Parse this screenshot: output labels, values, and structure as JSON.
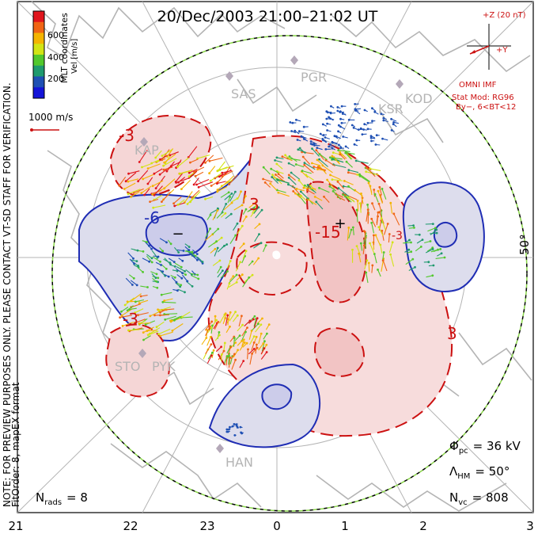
{
  "title": "20/Dec/2003 21:00–21:02 UT",
  "colorbar": {
    "title": "Vel [m/s]",
    "ticks": [
      "600",
      "400",
      "200"
    ],
    "colors": [
      "#e0141c",
      "#f06414",
      "#f4b400",
      "#d2e414",
      "#52c82c",
      "#1f9a6e",
      "#1f50b4",
      "#1414d8"
    ]
  },
  "coordinates_label": "MLT coordinates",
  "scale_vector": "1000 m/s",
  "imf": {
    "z_label": "+Z (20 nT)",
    "y_label": "+Y",
    "source": "OMNI IMF",
    "stat_mod": "Stat Mod: RG96",
    "condition": "By−, 6<BT<12"
  },
  "stations": [
    "PGR",
    "SAS",
    "KSR",
    "KOD",
    "KAP",
    "STO",
    "PYK",
    "HAN"
  ],
  "latitude_label": "50°",
  "contour_labels": [
    "-3",
    "-3",
    "-6",
    "-3",
    "3",
    "3",
    "-15",
    "3",
    "-3",
    "-3"
  ],
  "notes": {
    "line1": "NOTE: FOR PREVIEW PURPOSES ONLY. PLEASE CONTACT VT-SD STAFF FOR VERIFICATION.",
    "line2": "FitOrder: 8, mapEX format"
  },
  "stats": {
    "n_rads_label": "N",
    "n_rads_sub": "rads",
    "n_rads_value": "= 8",
    "phi_label": "Φ",
    "phi_sub": "pc",
    "phi_value": "= 36 kV",
    "lambda_label": "Λ",
    "lambda_sub": "HM",
    "lambda_value": "= 50°",
    "nvc_label": "N",
    "nvc_sub": "vc",
    "nvc_value": "= 808"
  },
  "mlt_ticks": [
    "21",
    "22",
    "23",
    "0",
    "1",
    "2",
    "3"
  ]
}
